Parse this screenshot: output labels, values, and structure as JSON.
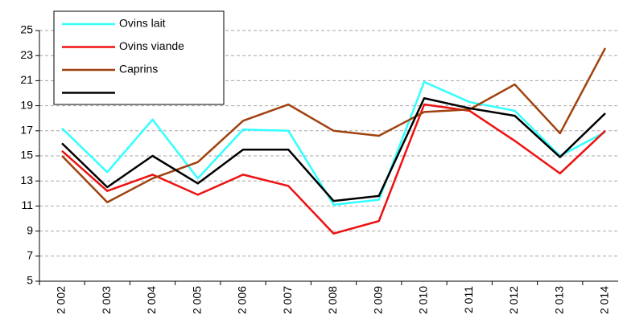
{
  "chart_data": {
    "type": "line",
    "categories": [
      "2 002",
      "2 003",
      "2 004",
      "2 005",
      "2 006",
      "2 007",
      "2 008",
      "2 009",
      "2 010",
      "2 011",
      "2 012",
      "2 013",
      "2 014"
    ],
    "series": [
      {
        "name": "Ovins lait",
        "color": "#33ffff",
        "values": [
          17.2,
          13.7,
          17.9,
          13.2,
          17.1,
          17.0,
          11.1,
          11.5,
          20.9,
          19.3,
          18.6,
          15.0,
          16.9
        ]
      },
      {
        "name": "Ovins viande",
        "color": "#ee1111",
        "values": [
          15.4,
          12.2,
          13.5,
          11.9,
          13.5,
          12.6,
          8.8,
          9.8,
          19.1,
          18.6,
          16.2,
          13.6,
          17.0
        ]
      },
      {
        "name": "Caprins",
        "color": "#a0420f",
        "values": [
          15.0,
          11.3,
          13.2,
          14.5,
          17.8,
          19.1,
          17.0,
          16.6,
          18.5,
          18.7,
          20.7,
          16.8,
          23.6
        ]
      },
      {
        "color": "#000000",
        "values": [
          16.0,
          12.5,
          15.0,
          12.8,
          15.5,
          15.5,
          11.4,
          11.8,
          19.6,
          18.8,
          18.2,
          14.9,
          18.4
        ]
      }
    ],
    "ylim": [
      5,
      25
    ],
    "yticks": [
      5,
      7,
      9,
      11,
      13,
      15,
      17,
      19,
      21,
      23,
      25
    ],
    "grid": true
  }
}
